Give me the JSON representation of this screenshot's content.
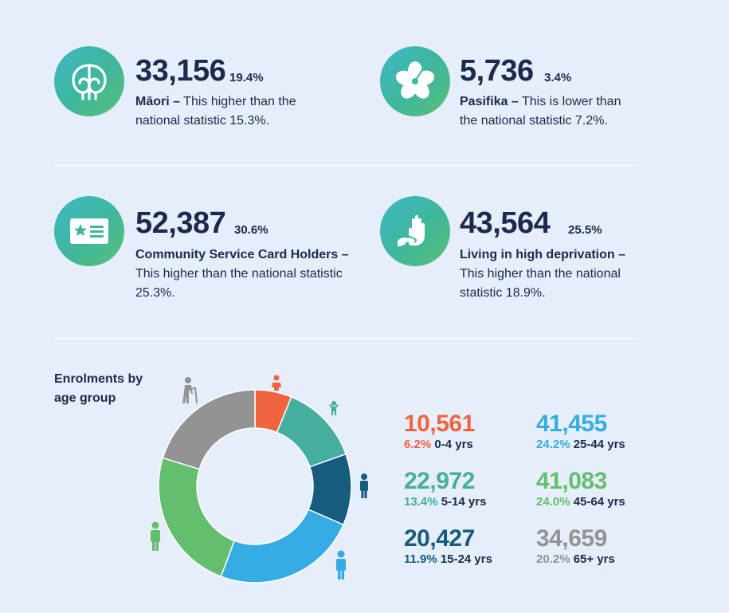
{
  "stats": [
    {
      "value": "33,156",
      "percent": "19.4%",
      "label": "Māori –",
      "text": " This higher than the national statistic 15.3%.",
      "icon": "koru-icon"
    },
    {
      "value": "5,736",
      "percent": "3.4%",
      "label": "Pasifika –",
      "text": " This is lower than the national statistic 7.2%.",
      "icon": "hibiscus-icon"
    },
    {
      "value": "52,387",
      "percent": "30.6%",
      "label": "Community Service Card Holders – ",
      "text": "This higher than the national statistic 25.3%.",
      "icon": "id-card-icon"
    },
    {
      "value": "43,564",
      "percent": "25.5%",
      "label": "Living in high deprivation – ",
      "text": "This higher than the national statistic 18.9%.",
      "icon": "hands-icon"
    }
  ],
  "enrolments_title": "Enrolments by age group",
  "age_groups": [
    {
      "count": "10,561",
      "percent": "6.2%",
      "range": "0-4 yrs",
      "color": "#f06441"
    },
    {
      "count": "22,972",
      "percent": "13.4%",
      "range": "5-14 yrs",
      "color": "#46ae9e"
    },
    {
      "count": "20,427",
      "percent": "11.9%",
      "range": "15-24 yrs",
      "color": "#165c7d"
    },
    {
      "count": "41,455",
      "percent": "24.2%",
      "range": "25-44 yrs",
      "color": "#35ace3"
    },
    {
      "count": "41,083",
      "percent": "24.0%",
      "range": "45-64 yrs",
      "color": "#63bf6d"
    },
    {
      "count": "34,659",
      "percent": "20.2%",
      "range": "65+ yrs",
      "color": "#939393"
    }
  ],
  "chart_data": {
    "type": "pie",
    "categories": [
      "0-4 yrs",
      "5-14 yrs",
      "15-24 yrs",
      "25-44 yrs",
      "45-64 yrs",
      "65+ yrs"
    ],
    "values": [
      10561,
      22972,
      20427,
      41455,
      41083,
      34659
    ],
    "percentages": [
      6.2,
      13.4,
      11.9,
      24.2,
      24.0,
      20.2
    ],
    "colors": [
      "#f06441",
      "#46ae9e",
      "#165c7d",
      "#35ace3",
      "#63bf6d",
      "#939393"
    ],
    "title": "Enrolments by age group",
    "style": "donut"
  }
}
